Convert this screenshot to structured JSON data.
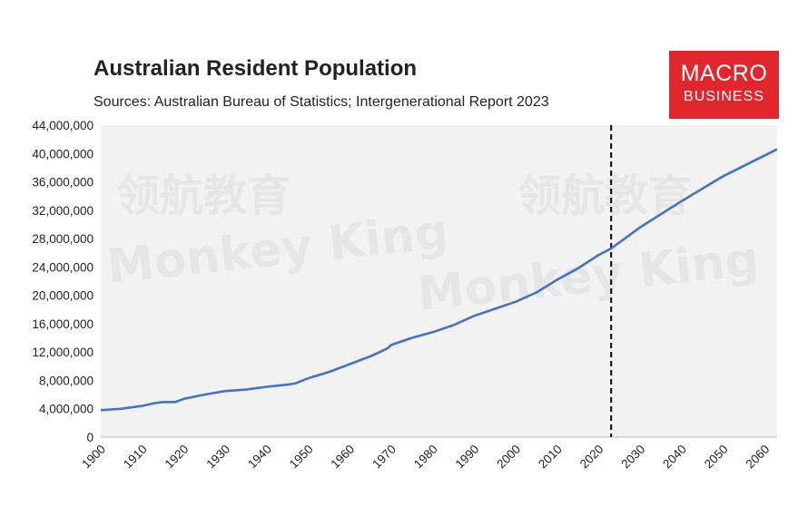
{
  "header": {
    "title": "Australian Resident Population",
    "subtitle": "Sources: Australian Bureau of Statistics; Intergenerational Report 2023"
  },
  "logo": {
    "line1": "MACRO",
    "line2": "BUSINESS"
  },
  "watermark": {
    "cjk": "领航教育",
    "latin": "Monkey King"
  },
  "colors": {
    "line": "#4472c4",
    "plot_bg": "#f2f2f2",
    "logo_bg": "#e2262e",
    "divider": "#000000"
  },
  "chart_data": {
    "type": "line",
    "title": "Australian Resident Population",
    "xlim": [
      1900,
      2063
    ],
    "ylim": [
      0,
      44000000
    ],
    "x_ticks": [
      1900,
      1910,
      1920,
      1930,
      1940,
      1950,
      1960,
      1970,
      1980,
      1990,
      2000,
      2010,
      2020,
      2030,
      2040,
      2050,
      2060
    ],
    "y_ticks": [
      0,
      4000000,
      8000000,
      12000000,
      16000000,
      20000000,
      24000000,
      28000000,
      32000000,
      36000000,
      40000000,
      44000000
    ],
    "y_tick_labels": [
      "0",
      "4,000,000",
      "8,000,000",
      "12,000,000",
      "16,000,000",
      "20,000,000",
      "24,000,000",
      "28,000,000",
      "32,000,000",
      "36,000,000",
      "40,000,000",
      "44,000,000"
    ],
    "grid": false,
    "vertical_marker": {
      "x": 2023,
      "style": "dashed"
    },
    "series": [
      {
        "x": [
          1900,
          1905,
          1910,
          1913,
          1915,
          1918,
          1920,
          1925,
          1930,
          1935,
          1940,
          1945,
          1947,
          1950,
          1955,
          1960,
          1965,
          1969,
          1970,
          1975,
          1980,
          1985,
          1990,
          1995,
          2000,
          2005,
          2010,
          2015,
          2020,
          2023,
          2030,
          2040,
          2050,
          2063
        ],
        "y": [
          3800000,
          4000000,
          4400000,
          4800000,
          4950000,
          4950000,
          5400000,
          6000000,
          6500000,
          6700000,
          7100000,
          7400000,
          7600000,
          8300000,
          9200000,
          10300000,
          11400000,
          12500000,
          13000000,
          14000000,
          14800000,
          15800000,
          17100000,
          18100000,
          19100000,
          20400000,
          22200000,
          23800000,
          25700000,
          26600000,
          29600000,
          33300000,
          36800000,
          40600000
        ]
      }
    ]
  }
}
